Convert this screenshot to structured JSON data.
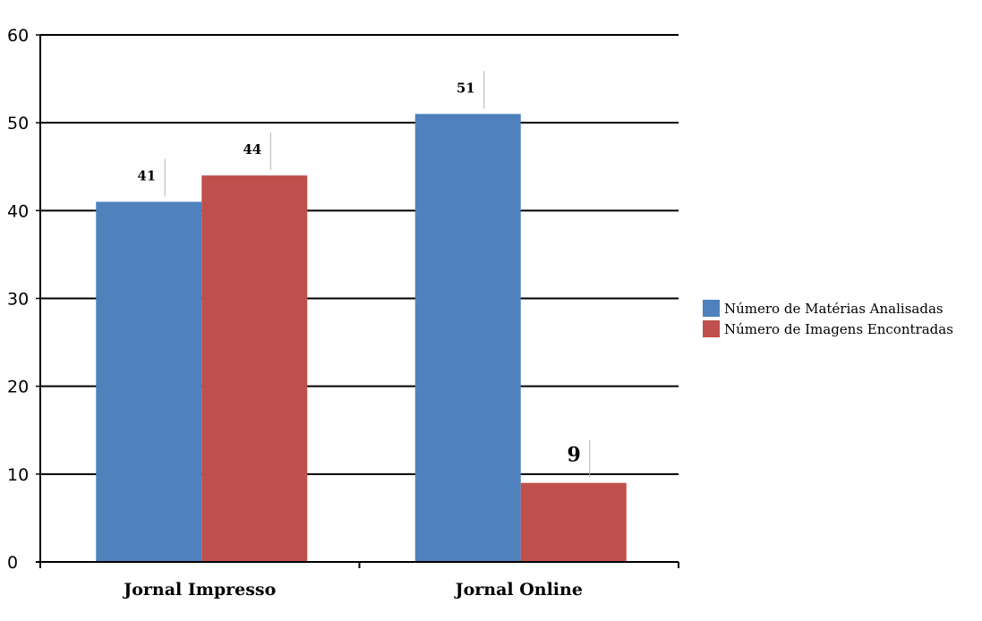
{
  "chart_data": {
    "type": "bar",
    "categories": [
      "Jornal Impresso",
      "Jornal Online"
    ],
    "series": [
      {
        "name": "Número de Matérias Analisadas",
        "color": "#4f81bd",
        "values": [
          41,
          51
        ]
      },
      {
        "name": "Número de Imagens Encontradas",
        "color": "#c0504d",
        "values": [
          44,
          9
        ]
      }
    ],
    "ylim": [
      0,
      60
    ],
    "yticks": [
      0,
      10,
      20,
      30,
      40,
      50,
      60
    ],
    "grid": true,
    "legend_position": "right",
    "title": "",
    "xlabel": "",
    "ylabel": ""
  }
}
